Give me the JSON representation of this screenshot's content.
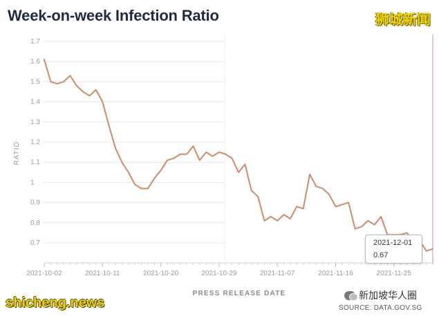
{
  "title": "Week-on-week Infection Ratio",
  "brand_cn": "狮城新闻",
  "watermark_site": "shicheng.news",
  "watermark_chat": "新加坡华人圈",
  "source": "SOURCE: DATA.GOV.SG",
  "tooltip": {
    "date": "2021-12-01",
    "value": "0.67"
  },
  "colors": {
    "line": "#cf8a68",
    "grid": "#e8e8e8",
    "axis_text": "#9b9b9b",
    "title": "#1f2b45",
    "crosshair": "#c090c0"
  },
  "chart_data": {
    "type": "line",
    "title": "Week-on-week Infection Ratio",
    "xlabel": "PRESS RELEASE DATE",
    "ylabel": "RATIO",
    "ylim": [
      0.65,
      1.7
    ],
    "yticks": [
      0.7,
      0.8,
      0.9,
      1,
      1.1,
      1.2,
      1.3,
      1.4,
      1.5,
      1.6,
      1.7
    ],
    "xlim": [
      "2021-10-02",
      "2021-12-01"
    ],
    "xticks": [
      "2021-10-02",
      "2021-10-11",
      "2021-10-20",
      "2021-10-29",
      "2021-11-07",
      "2021-11-16",
      "2021-11-25"
    ],
    "grid": "horizontal",
    "x": [
      "2021-10-02",
      "2021-10-03",
      "2021-10-04",
      "2021-10-05",
      "2021-10-06",
      "2021-10-07",
      "2021-10-08",
      "2021-10-09",
      "2021-10-10",
      "2021-10-11",
      "2021-10-12",
      "2021-10-13",
      "2021-10-14",
      "2021-10-15",
      "2021-10-16",
      "2021-10-17",
      "2021-10-18",
      "2021-10-19",
      "2021-10-20",
      "2021-10-21",
      "2021-10-22",
      "2021-10-23",
      "2021-10-24",
      "2021-10-25",
      "2021-10-26",
      "2021-10-27",
      "2021-10-28",
      "2021-10-29",
      "2021-10-30",
      "2021-10-31",
      "2021-11-01",
      "2021-11-02",
      "2021-11-03",
      "2021-11-04",
      "2021-11-05",
      "2021-11-06",
      "2021-11-07",
      "2021-11-08",
      "2021-11-09",
      "2021-11-10",
      "2021-11-11",
      "2021-11-12",
      "2021-11-13",
      "2021-11-14",
      "2021-11-15",
      "2021-11-16",
      "2021-11-17",
      "2021-11-18",
      "2021-11-19",
      "2021-11-20",
      "2021-11-21",
      "2021-11-22",
      "2021-11-23",
      "2021-11-24",
      "2021-11-25",
      "2021-11-26",
      "2021-11-27",
      "2021-11-28",
      "2021-11-29",
      "2021-11-30",
      "2021-12-01"
    ],
    "series": [
      {
        "values": [
          1.61,
          1.5,
          1.49,
          1.5,
          1.53,
          1.48,
          1.45,
          1.43,
          1.46,
          1.4,
          1.28,
          1.17,
          1.1,
          1.05,
          0.99,
          0.97,
          0.97,
          1.02,
          1.06,
          1.11,
          1.12,
          1.14,
          1.14,
          1.18,
          1.11,
          1.15,
          1.13,
          1.15,
          1.14,
          1.12,
          1.05,
          1.09,
          0.96,
          0.93,
          0.81,
          0.83,
          0.81,
          0.84,
          0.82,
          0.88,
          0.87,
          1.04,
          0.98,
          0.97,
          0.94,
          0.88,
          0.89,
          0.9,
          0.77,
          0.78,
          0.81,
          0.79,
          0.83,
          0.74,
          0.74,
          0.74,
          0.75,
          0.71,
          0.71,
          0.66,
          0.67
        ]
      }
    ]
  }
}
